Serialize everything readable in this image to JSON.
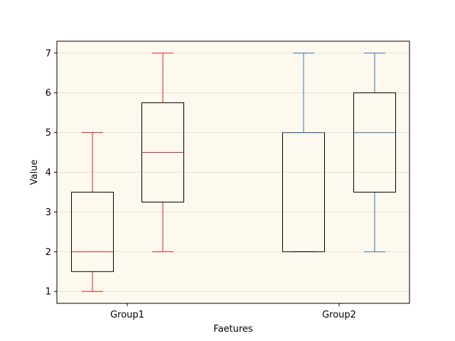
{
  "chart_data": {
    "type": "boxplot",
    "xlabel": "Faetures",
    "ylabel": "Value",
    "ylim": [
      0.7,
      7.3
    ],
    "yticks": [
      1,
      2,
      3,
      4,
      5,
      6,
      7
    ],
    "grid": "horizontal",
    "background": "#fdf9ee",
    "categories": [
      "Group1",
      "Group2"
    ],
    "boxes": [
      {
        "category": "Group1",
        "color": "#d62728",
        "min": 1,
        "q1": 1.5,
        "median": 2,
        "q3": 3.5,
        "max": 5
      },
      {
        "category": "Group1",
        "color": "#d62728",
        "min": 2,
        "q1": 3.25,
        "median": 4.5,
        "q3": 5.75,
        "max": 7
      },
      {
        "category": "Group2",
        "color": "#3b75af",
        "min": 2,
        "q1": 2,
        "median": 5,
        "q3": 5,
        "max": 7
      },
      {
        "category": "Group2",
        "color": "#3b75af",
        "min": 2,
        "q1": 3.5,
        "median": 5,
        "q3": 6,
        "max": 7
      }
    ]
  }
}
